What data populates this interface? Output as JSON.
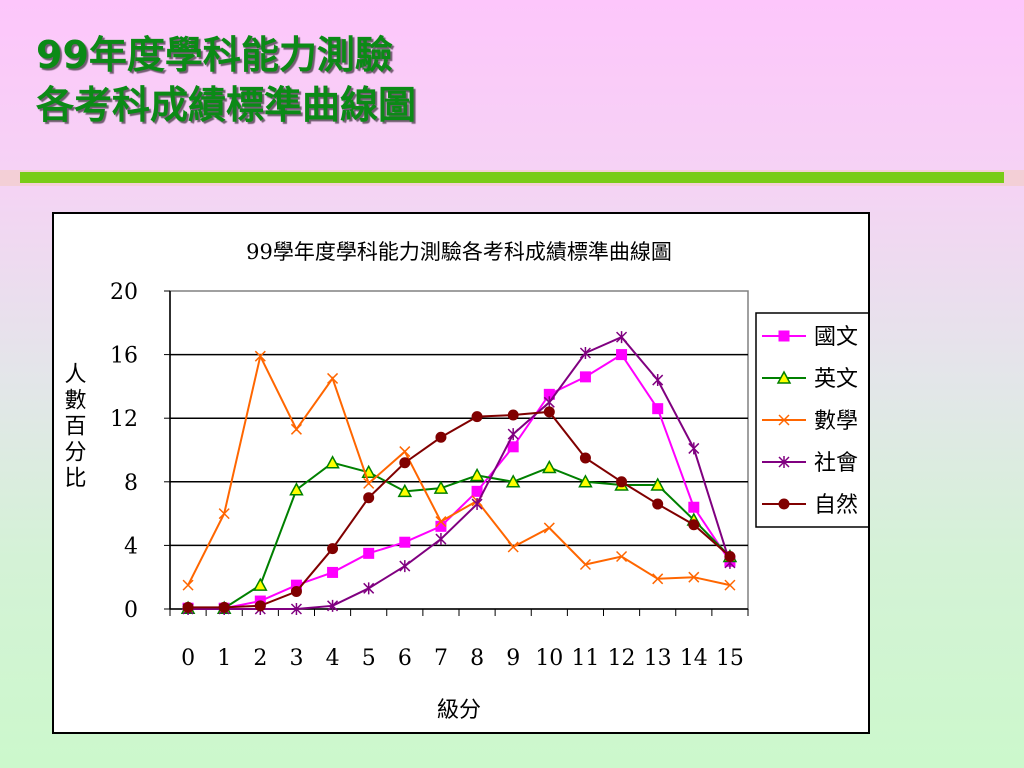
{
  "slide": {
    "title_line1": "99年度學科能力測驗",
    "title_line2": "各考科成績標準曲線圖"
  },
  "colors": {
    "title": "#0b8a16",
    "accent_bar": "#78cc16",
    "background_top": "#fdc6fb",
    "background_bottom": "#ccf8cc"
  },
  "chart_data": {
    "type": "line",
    "title": "99學年度學科能力測驗各考科成績標準曲線圖",
    "xlabel": "級分",
    "ylabel": "人數百分比",
    "x": [
      0,
      1,
      2,
      3,
      4,
      5,
      6,
      7,
      8,
      9,
      10,
      11,
      12,
      13,
      14,
      15
    ],
    "ylim": [
      0,
      20
    ],
    "yticks": [
      0,
      4,
      8,
      12,
      16,
      20
    ],
    "grid": "horizontal",
    "legend_position": "right",
    "series": [
      {
        "name": "國文",
        "color": "#ff00ff",
        "marker": "square",
        "values": [
          0.05,
          0.05,
          0.5,
          1.5,
          2.3,
          3.5,
          4.2,
          5.2,
          7.4,
          10.2,
          13.5,
          14.6,
          16.0,
          12.6,
          6.4,
          3.0
        ]
      },
      {
        "name": "英文",
        "color": "#008000",
        "marker": "triangle",
        "values": [
          0.05,
          0.05,
          1.5,
          7.5,
          9.2,
          8.6,
          7.4,
          7.6,
          8.4,
          8.0,
          8.9,
          8.0,
          7.8,
          7.8,
          5.6,
          3.3
        ]
      },
      {
        "name": "數學",
        "color": "#ff6600",
        "marker": "x",
        "values": [
          1.5,
          6.0,
          15.9,
          11.3,
          14.5,
          7.9,
          9.9,
          5.5,
          6.8,
          3.9,
          5.1,
          2.8,
          3.3,
          1.9,
          2.0,
          1.5
        ]
      },
      {
        "name": "社會",
        "color": "#800080",
        "marker": "star",
        "values": [
          0.0,
          0.0,
          0.0,
          0.0,
          0.2,
          1.3,
          2.7,
          4.4,
          6.6,
          11.0,
          13.0,
          16.1,
          17.1,
          14.4,
          10.1,
          2.9
        ]
      },
      {
        "name": "自然",
        "color": "#800000",
        "marker": "circle",
        "values": [
          0.1,
          0.1,
          0.2,
          1.1,
          3.8,
          7.0,
          9.2,
          10.8,
          12.1,
          12.2,
          12.4,
          9.5,
          8.0,
          6.6,
          5.3,
          3.3
        ]
      }
    ]
  }
}
